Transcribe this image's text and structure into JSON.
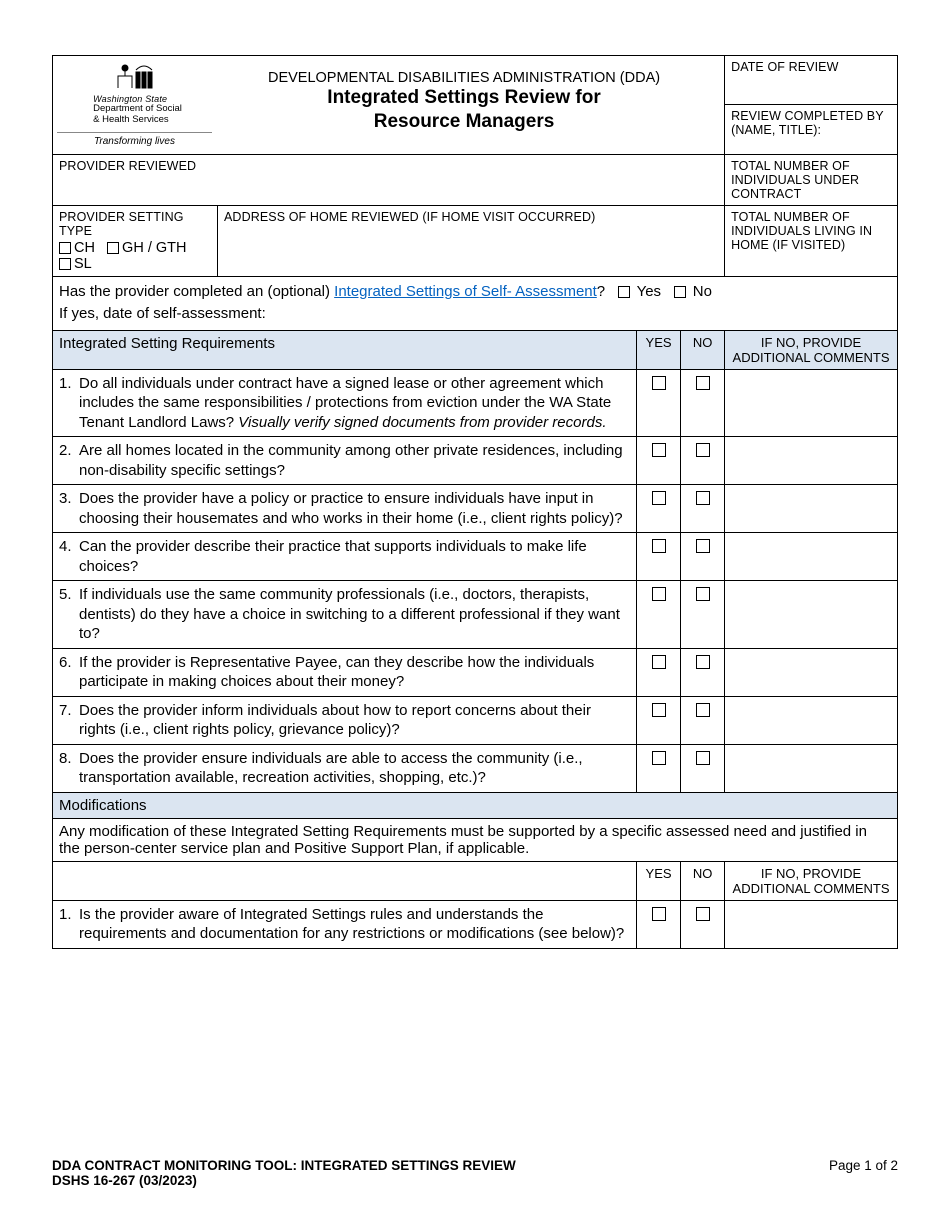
{
  "logo": {
    "line1": "Washington State",
    "line2": "Department of Social",
    "line3": "& Health Services",
    "tagline": "Transforming lives"
  },
  "header": {
    "admin_line": "DEVELOPMENTAL DISABILITIES ADMINISTRATION (DDA)",
    "title_line1": "Integrated Settings Review for",
    "title_line2": "Resource Managers",
    "date_of_review_label": "DATE OF REVIEW",
    "review_by_label": "REVIEW COMPLETED BY (NAME, TITLE):"
  },
  "fields": {
    "provider_reviewed_label": "PROVIDER REVIEWED",
    "total_contract_label": "TOTAL NUMBER OF INDIVIDUALS UNDER CONTRACT",
    "provider_setting_type_label": "PROVIDER SETTING TYPE",
    "setting_ch": "CH",
    "setting_gh": "GH / GTH",
    "setting_sl": "SL",
    "address_label": "ADDRESS OF HOME REVIEWED (IF HOME VISIT OCCURRED)",
    "total_living_label": "TOTAL NUMBER OF INDIVIDUALS LIVING IN HOME (IF VISITED)",
    "self_assess_q_pre": "Has the provider completed an (optional) ",
    "self_assess_link": "Integrated Settings of Self- Assessment",
    "self_assess_q_post": "?",
    "yes": "Yes",
    "no": "No",
    "self_assess_date": "If yes, date of self-assessment:"
  },
  "columns": {
    "req_header": "Integrated Setting Requirements",
    "yes": "YES",
    "no": "NO",
    "comments": "IF NO, PROVIDE ADDITIONAL COMMENTS"
  },
  "requirements": [
    {
      "n": "1.",
      "text_a": "Do all individuals under contract have a signed lease or other agreement which includes the same responsibilities / protections from eviction under the WA State Tenant Landlord Laws?  ",
      "text_i": "Visually verify signed documents from provider records."
    },
    {
      "n": "2.",
      "text_a": "Are all homes located in the community among other private residences, including non-disability specific settings?",
      "text_i": ""
    },
    {
      "n": "3.",
      "text_a": "Does the provider have a policy or practice to ensure individuals have input in choosing their housemates and who works in their home (i.e., client rights policy)?",
      "text_i": ""
    },
    {
      "n": "4.",
      "text_a": "Can the provider describe their practice that supports individuals to make life choices?",
      "text_i": ""
    },
    {
      "n": "5.",
      "text_a": "If individuals use the same community professionals (i.e., doctors, therapists, dentists) do they have a choice in switching to a different professional if they want to?",
      "text_i": ""
    },
    {
      "n": "6.",
      "text_a": "If the provider is Representative Payee, can they describe how the individuals participate in making choices about their money?",
      "text_i": ""
    },
    {
      "n": "7.",
      "text_a": "Does the provider inform individuals about how to report concerns about their rights (i.e., client rights policy, grievance policy)?",
      "text_i": ""
    },
    {
      "n": "8.",
      "text_a": "Does the provider ensure individuals are able to access the community (i.e., transportation available, recreation activities, shopping, etc.)?",
      "text_i": ""
    }
  ],
  "modifications": {
    "header": "Modifications",
    "intro": "Any modification of these Integrated Setting Requirements must be supported by a specific assessed need and justified in the person-center service plan and Positive Support Plan, if applicable.",
    "rows": [
      {
        "n": "1.",
        "text": "Is the provider aware of Integrated Settings rules and understands the requirements and documentation for any restrictions or modifications (see below)?"
      }
    ]
  },
  "footer": {
    "left_line1": "DDA CONTRACT MONITORING TOOL:  INTEGRATED SETTINGS REVIEW",
    "left_line2": "DSHS 16-267 (03/2023)",
    "right": "Page 1 of 2"
  },
  "colors": {
    "section_bg": "#dbe5f1",
    "link": "#0563c1"
  }
}
